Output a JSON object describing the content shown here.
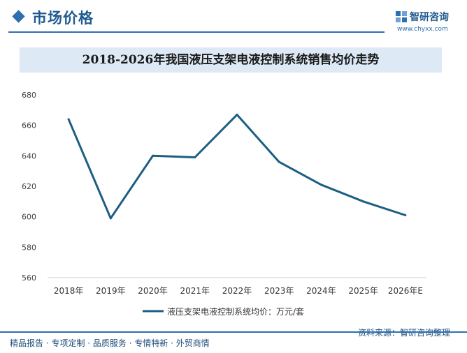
{
  "header": {
    "section_title": "市场价格",
    "brand_name": "智研咨询",
    "brand_url": "www.chyxx.com"
  },
  "chart_data": {
    "type": "line",
    "title": "2018-2026年我国液压支架电液控制系统销售均价走势",
    "categories": [
      "2018年",
      "2019年",
      "2020年",
      "2021年",
      "2022年",
      "2023年",
      "2024年",
      "2025年",
      "2026年E"
    ],
    "series": [
      {
        "name": "液压支架电液控制系统均价：万元/套",
        "values": [
          664,
          599,
          640,
          639,
          667,
          636,
          621,
          610,
          601
        ],
        "color": "#1c5f82"
      }
    ],
    "ylim": [
      560,
      680
    ],
    "yticks": [
      560,
      580,
      600,
      620,
      640,
      660,
      680
    ],
    "grid": false,
    "legend_position": "bottom"
  },
  "footer": {
    "services": "精品报告 · 专项定制 · 品质服务 · 专情特新 · 外贸商情",
    "source": "资料来源：智研咨询整理"
  }
}
